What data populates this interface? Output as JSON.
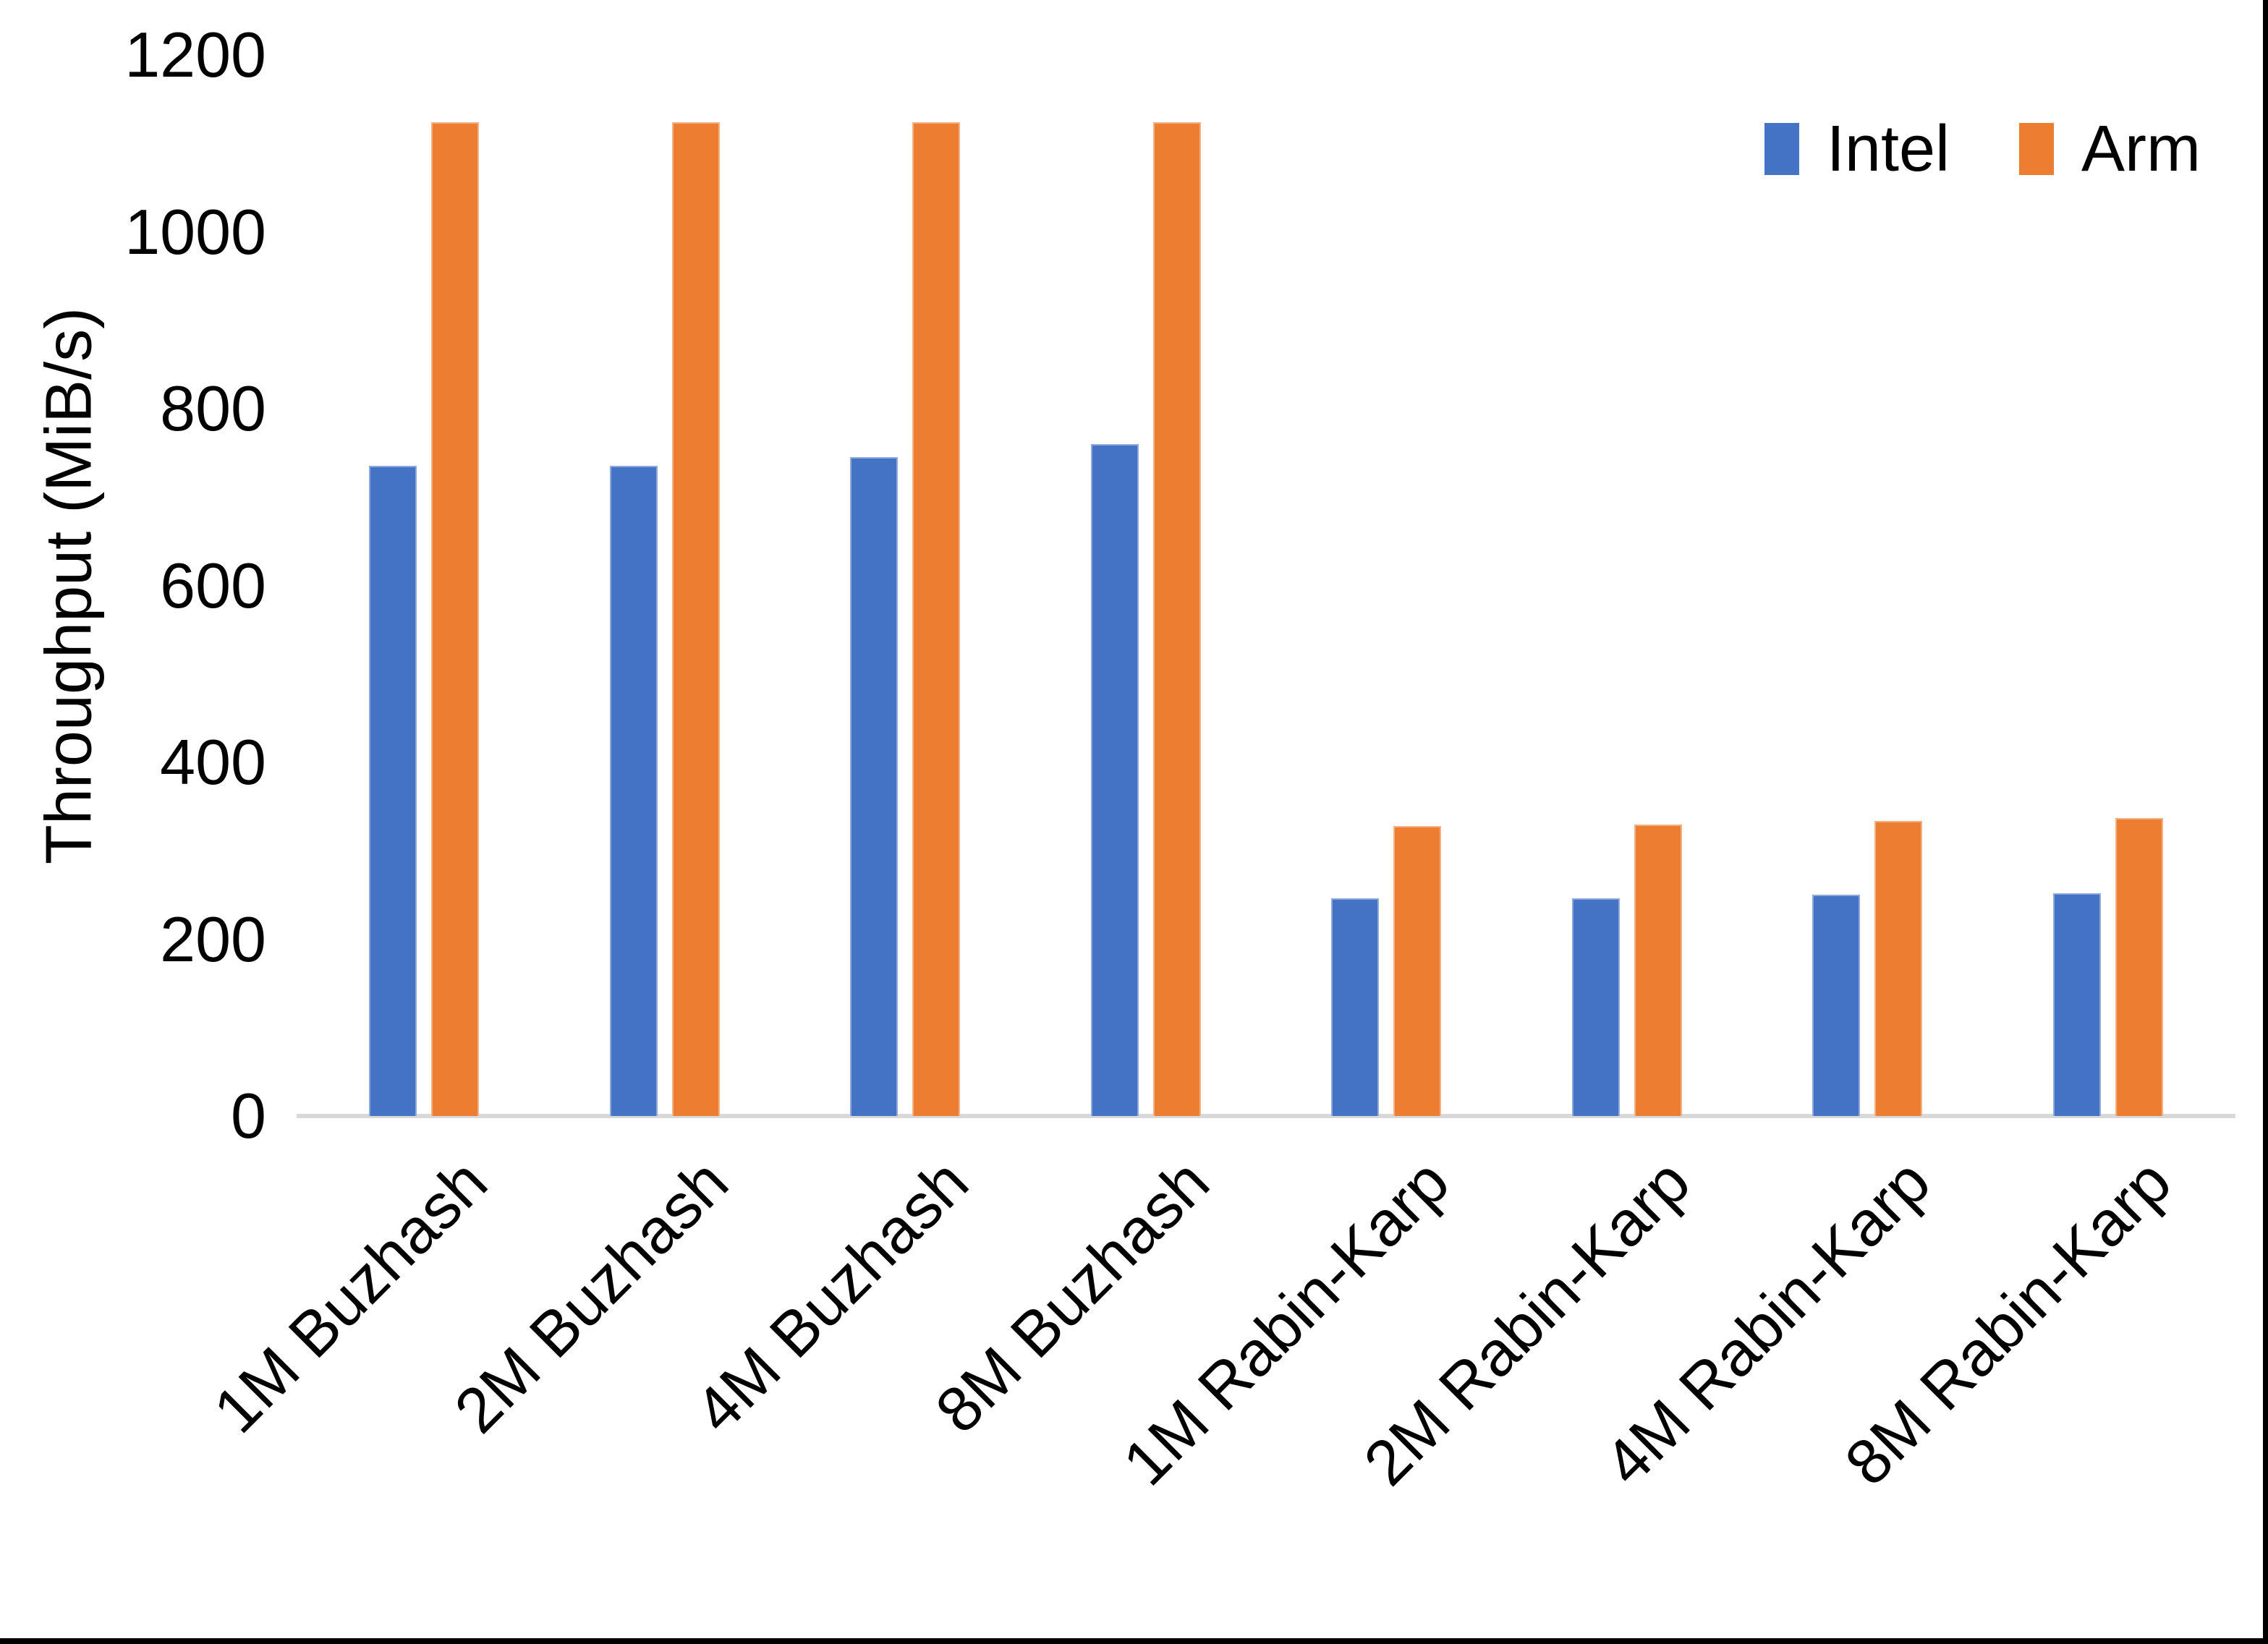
{
  "chart_data": {
    "type": "bar",
    "title": "",
    "xlabel": "",
    "ylabel": "Throughput (MiB/s)",
    "ylim": [
      0,
      1200
    ],
    "yticks": [
      0,
      200,
      400,
      600,
      800,
      1000,
      1200
    ],
    "grid": false,
    "legend_position": "top-right",
    "axis_line_color": "#D9D9D9",
    "text_color": "#000000",
    "categories": [
      "1M Buzhash",
      "2M Buzhash",
      "4M Buzhash",
      "8M Buzhash",
      "1M Rabin-Karp",
      "2M Rabin-Karp",
      "4M Rabin-Karp",
      "8M Rabin-Karp"
    ],
    "series": [
      {
        "name": "Intel",
        "color": "#4472C4",
        "values": [
          735,
          735,
          745,
          760,
          246,
          246,
          250,
          252
        ]
      },
      {
        "name": "Arm",
        "color": "#ED7D31",
        "values": [
          1124,
          1124,
          1124,
          1124,
          328,
          330,
          334,
          337
        ]
      }
    ]
  }
}
